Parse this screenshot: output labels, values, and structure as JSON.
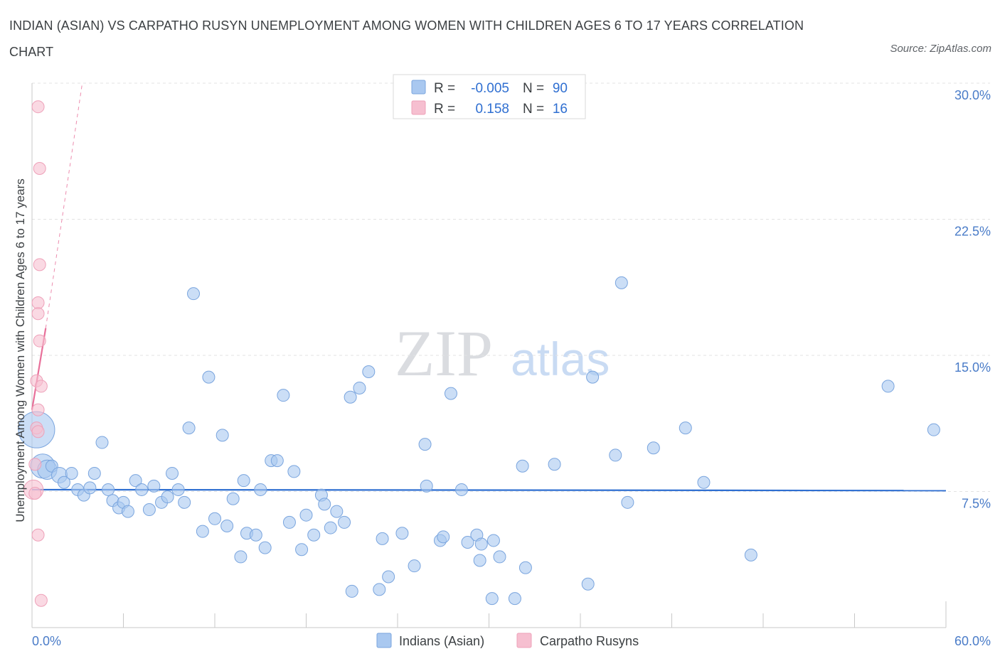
{
  "title": "INDIAN (ASIAN) VS CARPATHO RUSYN UNEMPLOYMENT AMONG WOMEN WITH CHILDREN AGES 6 TO 17 YEARS CORRELATION CHART",
  "source": "Source: ZipAtlas.com",
  "watermark": {
    "zip": "ZIP",
    "atlas": "atlas"
  },
  "colors": {
    "blue_fill": "#a9c8f0",
    "blue_stroke": "#7aa5de",
    "blue_line": "#2f6fd1",
    "pink_fill": "#f6bfd0",
    "pink_stroke": "#eea1b9",
    "pink_line": "#e8709a",
    "tick_text": "#4a7cc8"
  },
  "legend": {
    "rows": [
      {
        "r_label": "R =",
        "r_value": "-0.005",
        "n_label": "N =",
        "n_value": "90"
      },
      {
        "r_label": "R =",
        "r_value": "0.158",
        "n_label": "N =",
        "n_value": "16"
      }
    ]
  },
  "bottom_legend": [
    "Indians (Asian)",
    "Carpatho Rusyns"
  ],
  "chart_data": {
    "type": "scatter",
    "title": "INDIAN (ASIAN) VS CARPATHO RUSYN UNEMPLOYMENT AMONG WOMEN WITH CHILDREN AGES 6 TO 17 YEARS CORRELATION CHART",
    "xlabel": "",
    "ylabel": "Unemployment Among Women with Children Ages 6 to 17 years",
    "xlim": [
      0,
      60
    ],
    "ylim": [
      0,
      30
    ],
    "x_tick_labels": [
      "0.0%",
      "60.0%"
    ],
    "y_ticks": [
      7.5,
      15.0,
      22.5,
      30.0
    ],
    "y_tick_labels": [
      "7.5%",
      "15.0%",
      "22.5%",
      "30.0%"
    ],
    "grid": true,
    "legend_position": "top-center",
    "series": [
      {
        "name": "Indians (Asian)",
        "r": -0.005,
        "n": 90,
        "trend": {
          "x": [
            0,
            60
          ],
          "y": [
            7.6,
            7.55
          ]
        },
        "points": [
          {
            "x": 0.3,
            "y": 10.9,
            "s": 3
          },
          {
            "x": 0.7,
            "y": 8.9,
            "s": 2
          },
          {
            "x": 1.0,
            "y": 8.7,
            "s": 1.6
          },
          {
            "x": 1.3,
            "y": 8.9,
            "s": 1
          },
          {
            "x": 1.8,
            "y": 8.4,
            "s": 1.3
          },
          {
            "x": 2.1,
            "y": 8.0,
            "s": 1
          },
          {
            "x": 2.6,
            "y": 8.5,
            "s": 1
          },
          {
            "x": 3.0,
            "y": 7.6,
            "s": 1
          },
          {
            "x": 3.4,
            "y": 7.3,
            "s": 1
          },
          {
            "x": 3.8,
            "y": 7.7,
            "s": 1
          },
          {
            "x": 4.1,
            "y": 8.5,
            "s": 1
          },
          {
            "x": 4.6,
            "y": 10.2,
            "s": 1
          },
          {
            "x": 5.0,
            "y": 7.6,
            "s": 1
          },
          {
            "x": 5.3,
            "y": 7.0,
            "s": 1
          },
          {
            "x": 5.7,
            "y": 6.6,
            "s": 1
          },
          {
            "x": 6.0,
            "y": 6.9,
            "s": 1
          },
          {
            "x": 6.3,
            "y": 6.4,
            "s": 1
          },
          {
            "x": 6.8,
            "y": 8.1,
            "s": 1
          },
          {
            "x": 7.2,
            "y": 7.6,
            "s": 1
          },
          {
            "x": 7.7,
            "y": 6.5,
            "s": 1
          },
          {
            "x": 8.0,
            "y": 7.8,
            "s": 1
          },
          {
            "x": 8.5,
            "y": 6.9,
            "s": 1
          },
          {
            "x": 8.9,
            "y": 7.2,
            "s": 1
          },
          {
            "x": 9.2,
            "y": 8.5,
            "s": 1
          },
          {
            "x": 9.6,
            "y": 7.6,
            "s": 1
          },
          {
            "x": 10.0,
            "y": 6.9,
            "s": 1
          },
          {
            "x": 10.3,
            "y": 11.0,
            "s": 1
          },
          {
            "x": 10.6,
            "y": 18.4,
            "s": 1
          },
          {
            "x": 11.2,
            "y": 5.3,
            "s": 1
          },
          {
            "x": 11.6,
            "y": 13.8,
            "s": 1
          },
          {
            "x": 12.0,
            "y": 6.0,
            "s": 1
          },
          {
            "x": 12.5,
            "y": 10.6,
            "s": 1
          },
          {
            "x": 12.8,
            "y": 5.6,
            "s": 1
          },
          {
            "x": 13.2,
            "y": 7.1,
            "s": 1
          },
          {
            "x": 13.7,
            "y": 3.9,
            "s": 1
          },
          {
            "x": 13.9,
            "y": 8.1,
            "s": 1
          },
          {
            "x": 14.1,
            "y": 5.2,
            "s": 1
          },
          {
            "x": 14.7,
            "y": 5.1,
            "s": 1
          },
          {
            "x": 15.0,
            "y": 7.6,
            "s": 1
          },
          {
            "x": 15.3,
            "y": 4.4,
            "s": 1
          },
          {
            "x": 15.7,
            "y": 9.2,
            "s": 1
          },
          {
            "x": 16.1,
            "y": 9.2,
            "s": 1
          },
          {
            "x": 16.5,
            "y": 12.8,
            "s": 1
          },
          {
            "x": 16.9,
            "y": 5.8,
            "s": 1
          },
          {
            "x": 17.2,
            "y": 8.6,
            "s": 1
          },
          {
            "x": 17.7,
            "y": 4.3,
            "s": 1
          },
          {
            "x": 18.0,
            "y": 6.2,
            "s": 1
          },
          {
            "x": 18.5,
            "y": 5.1,
            "s": 1
          },
          {
            "x": 19.0,
            "y": 7.3,
            "s": 1
          },
          {
            "x": 19.2,
            "y": 6.8,
            "s": 1
          },
          {
            "x": 19.6,
            "y": 5.5,
            "s": 1
          },
          {
            "x": 20.0,
            "y": 6.4,
            "s": 1
          },
          {
            "x": 20.5,
            "y": 5.8,
            "s": 1
          },
          {
            "x": 20.9,
            "y": 12.7,
            "s": 1
          },
          {
            "x": 21.0,
            "y": 2.0,
            "s": 1
          },
          {
            "x": 21.5,
            "y": 13.2,
            "s": 1
          },
          {
            "x": 22.1,
            "y": 14.1,
            "s": 1
          },
          {
            "x": 22.8,
            "y": 2.1,
            "s": 1
          },
          {
            "x": 23.0,
            "y": 4.9,
            "s": 1
          },
          {
            "x": 23.4,
            "y": 2.8,
            "s": 1
          },
          {
            "x": 24.3,
            "y": 5.2,
            "s": 1
          },
          {
            "x": 25.1,
            "y": 3.4,
            "s": 1
          },
          {
            "x": 25.9,
            "y": 7.8,
            "s": 1
          },
          {
            "x": 25.8,
            "y": 10.1,
            "s": 1
          },
          {
            "x": 26.8,
            "y": 4.8,
            "s": 1
          },
          {
            "x": 27.0,
            "y": 5.0,
            "s": 1
          },
          {
            "x": 27.5,
            "y": 12.9,
            "s": 1
          },
          {
            "x": 28.2,
            "y": 7.6,
            "s": 1
          },
          {
            "x": 28.6,
            "y": 4.7,
            "s": 1
          },
          {
            "x": 29.2,
            "y": 5.1,
            "s": 1
          },
          {
            "x": 29.4,
            "y": 3.7,
            "s": 1
          },
          {
            "x": 29.5,
            "y": 4.6,
            "s": 1
          },
          {
            "x": 30.3,
            "y": 4.8,
            "s": 1
          },
          {
            "x": 30.2,
            "y": 1.6,
            "s": 1
          },
          {
            "x": 30.7,
            "y": 3.9,
            "s": 1
          },
          {
            "x": 31.7,
            "y": 1.6,
            "s": 1
          },
          {
            "x": 32.2,
            "y": 8.9,
            "s": 1
          },
          {
            "x": 32.4,
            "y": 3.3,
            "s": 1
          },
          {
            "x": 34.3,
            "y": 9.0,
            "s": 1
          },
          {
            "x": 36.5,
            "y": 2.4,
            "s": 1
          },
          {
            "x": 36.8,
            "y": 13.8,
            "s": 1
          },
          {
            "x": 38.3,
            "y": 9.5,
            "s": 1
          },
          {
            "x": 38.7,
            "y": 19.0,
            "s": 1
          },
          {
            "x": 39.1,
            "y": 6.9,
            "s": 1
          },
          {
            "x": 40.8,
            "y": 9.9,
            "s": 1
          },
          {
            "x": 42.9,
            "y": 11.0,
            "s": 1
          },
          {
            "x": 44.1,
            "y": 8.0,
            "s": 1
          },
          {
            "x": 47.2,
            "y": 4.0,
            "s": 1
          },
          {
            "x": 56.2,
            "y": 13.3,
            "s": 1
          },
          {
            "x": 59.2,
            "y": 10.9,
            "s": 1
          }
        ]
      },
      {
        "name": "Carpatho Rusyns",
        "r": 0.158,
        "n": 16,
        "trend": {
          "x": [
            0,
            0.9
          ],
          "y": [
            12.0,
            16.5
          ],
          "dashed_extension": {
            "x": [
              0.9,
              3.3
            ],
            "y": [
              16.5,
              30.0
            ]
          }
        },
        "points": [
          {
            "x": 0.1,
            "y": 7.6,
            "s": 1.6
          },
          {
            "x": 0.2,
            "y": 7.4,
            "s": 1
          },
          {
            "x": 0.3,
            "y": 13.6,
            "s": 1
          },
          {
            "x": 0.3,
            "y": 11.0,
            "s": 1
          },
          {
            "x": 0.4,
            "y": 12.0,
            "s": 1
          },
          {
            "x": 0.4,
            "y": 10.8,
            "s": 1
          },
          {
            "x": 0.4,
            "y": 28.7,
            "s": 1
          },
          {
            "x": 0.5,
            "y": 25.3,
            "s": 1
          },
          {
            "x": 0.5,
            "y": 20.0,
            "s": 1
          },
          {
            "x": 0.4,
            "y": 17.9,
            "s": 1
          },
          {
            "x": 0.4,
            "y": 17.3,
            "s": 1
          },
          {
            "x": 0.5,
            "y": 15.8,
            "s": 1
          },
          {
            "x": 0.6,
            "y": 13.3,
            "s": 1
          },
          {
            "x": 0.4,
            "y": 5.1,
            "s": 1
          },
          {
            "x": 0.6,
            "y": 1.5,
            "s": 1
          },
          {
            "x": 0.2,
            "y": 9.0,
            "s": 1
          }
        ]
      }
    ]
  }
}
